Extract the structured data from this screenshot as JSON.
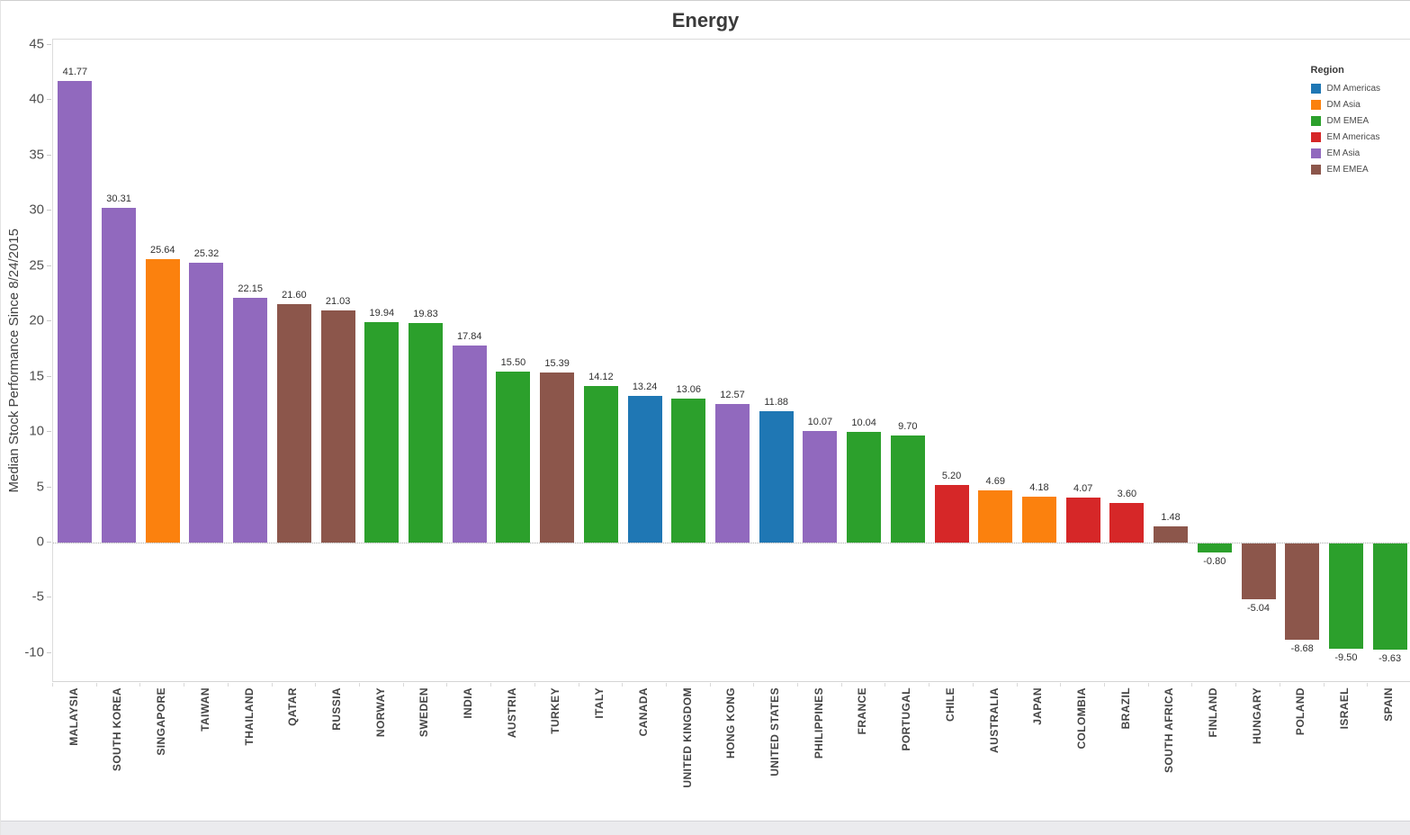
{
  "title": "Energy",
  "y_axis": {
    "label": "Median Stock Performance Since 8/24/2015",
    "ticks": [
      45,
      40,
      35,
      30,
      25,
      20,
      15,
      10,
      5,
      0,
      -5,
      -10
    ]
  },
  "legend": {
    "title": "Region",
    "items": [
      "DM Americas",
      "DM Asia",
      "DM EMEA",
      "EM Americas",
      "EM Asia",
      "EM EMEA"
    ]
  },
  "chart_data": {
    "type": "bar",
    "title": "Energy",
    "xlabel": "",
    "ylabel": "Median Stock Performance Since 8/24/2015",
    "ylim": [
      -12.5,
      45
    ],
    "grid": false,
    "legend_position": "top-right",
    "categories": [
      "MALAYSIA",
      "SOUTH KOREA",
      "SINGAPORE",
      "TAIWAN",
      "THAILAND",
      "QATAR",
      "RUSSIA",
      "NORWAY",
      "SWEDEN",
      "INDIA",
      "AUSTRIA",
      "TURKEY",
      "ITALY",
      "CANADA",
      "UNITED KINGDOM",
      "HONG KONG",
      "UNITED STATES",
      "PHILIPPINES",
      "FRANCE",
      "PORTUGAL",
      "CHILE",
      "AUSTRALIA",
      "JAPAN",
      "COLOMBIA",
      "BRAZIL",
      "SOUTH AFRICA",
      "FINLAND",
      "HUNGARY",
      "POLAND",
      "ISRAEL",
      "SPAIN"
    ],
    "values": [
      41.77,
      30.31,
      25.64,
      25.32,
      22.15,
      21.6,
      21.03,
      19.94,
      19.83,
      17.84,
      15.5,
      15.39,
      14.12,
      13.24,
      13.06,
      12.57,
      11.88,
      10.07,
      10.04,
      9.7,
      5.2,
      4.69,
      4.18,
      4.07,
      3.6,
      1.48,
      -0.8,
      -5.04,
      -8.68,
      -9.5,
      -9.63
    ],
    "regions": [
      "EM Asia",
      "EM Asia",
      "DM Asia",
      "EM Asia",
      "EM Asia",
      "EM EMEA",
      "EM EMEA",
      "DM EMEA",
      "DM EMEA",
      "EM Asia",
      "DM EMEA",
      "EM EMEA",
      "DM EMEA",
      "DM Americas",
      "DM EMEA",
      "EM Asia",
      "DM Americas",
      "EM Asia",
      "DM EMEA",
      "DM EMEA",
      "EM Americas",
      "DM Asia",
      "DM Asia",
      "EM Americas",
      "EM Americas",
      "EM EMEA",
      "DM EMEA",
      "EM EMEA",
      "EM EMEA",
      "DM EMEA",
      "DM EMEA"
    ],
    "region_colors": {
      "DM Americas": "#1f77b4",
      "DM Asia": "#fb810e",
      "DM EMEA": "#2ca02c",
      "EM Americas": "#d62728",
      "EM Asia": "#9169be",
      "EM EMEA": "#8c564b"
    }
  }
}
